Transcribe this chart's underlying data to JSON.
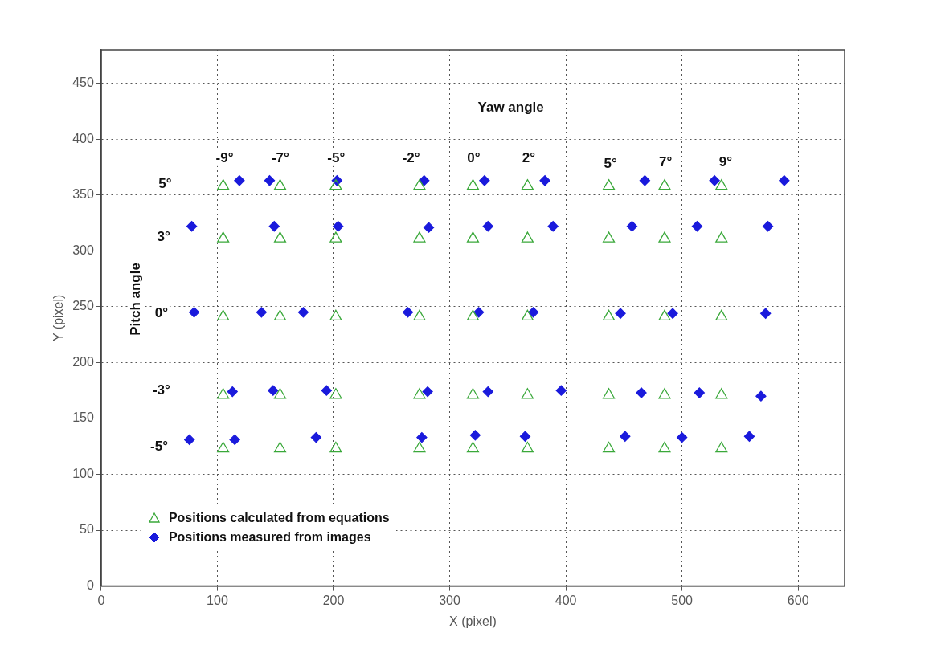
{
  "chart_data": {
    "type": "scatter",
    "xlabel": "X (pixel)",
    "ylabel": "Y (pixel)",
    "xlim": [
      0,
      640
    ],
    "xticks": [
      0,
      100,
      200,
      300,
      400,
      500,
      600
    ],
    "ylim": [
      0,
      480
    ],
    "yticks": [
      0,
      50,
      100,
      150,
      200,
      250,
      300,
      350,
      400,
      450
    ],
    "grid": true,
    "legend": "bottom left",
    "series": [
      {
        "name": "Positions calculated from equations",
        "color": "#3aa83a",
        "marker": "triangle",
        "x": [
          105,
          154,
          202,
          274,
          320,
          367,
          437,
          485,
          534,
          105,
          154,
          202,
          274,
          320,
          367,
          437,
          485,
          534,
          105,
          154,
          202,
          274,
          320,
          367,
          437,
          485,
          534,
          105,
          154,
          202,
          274,
          320,
          367,
          437,
          485,
          534,
          105,
          154,
          202,
          274,
          320,
          367,
          437,
          485,
          534
        ],
        "values": [
          358,
          358,
          358,
          358,
          358,
          358,
          358,
          358,
          358,
          311,
          311,
          311,
          311,
          311,
          311,
          311,
          311,
          311,
          241,
          241,
          241,
          241,
          241,
          241,
          241,
          241,
          241,
          171,
          171,
          171,
          171,
          171,
          171,
          171,
          171,
          171,
          123,
          123,
          123,
          123,
          123,
          123,
          123,
          123,
          123
        ]
      },
      {
        "name": "Positions measured from images",
        "color": "#1a1adc",
        "marker": "diamond",
        "x": [
          119,
          145,
          203,
          278,
          330,
          382,
          468,
          528,
          588,
          78,
          149,
          204,
          282,
          333,
          389,
          457,
          513,
          574,
          80,
          138,
          174,
          264,
          325,
          372,
          447,
          492,
          572,
          113,
          148,
          194,
          281,
          333,
          396,
          465,
          515,
          568,
          76,
          115,
          185,
          276,
          322,
          365,
          451,
          500,
          558
        ],
        "values": [
          363,
          363,
          363,
          363,
          363,
          363,
          363,
          363,
          363,
          322,
          322,
          322,
          321,
          322,
          322,
          322,
          322,
          322,
          245,
          245,
          245,
          245,
          245,
          245,
          244,
          244,
          244,
          174,
          175,
          175,
          174,
          174,
          175,
          173,
          173,
          170,
          131,
          131,
          133,
          133,
          135,
          134,
          134,
          133,
          134
        ]
      }
    ],
    "annotations": [
      "Yaw angle",
      "-9°",
      "-7°",
      "-5°",
      "-2°",
      "0°",
      "2°",
      "5°",
      "7°",
      "9°",
      "5°",
      "3°",
      "0°",
      "-3°",
      "-5°",
      "Pitch angle"
    ]
  }
}
